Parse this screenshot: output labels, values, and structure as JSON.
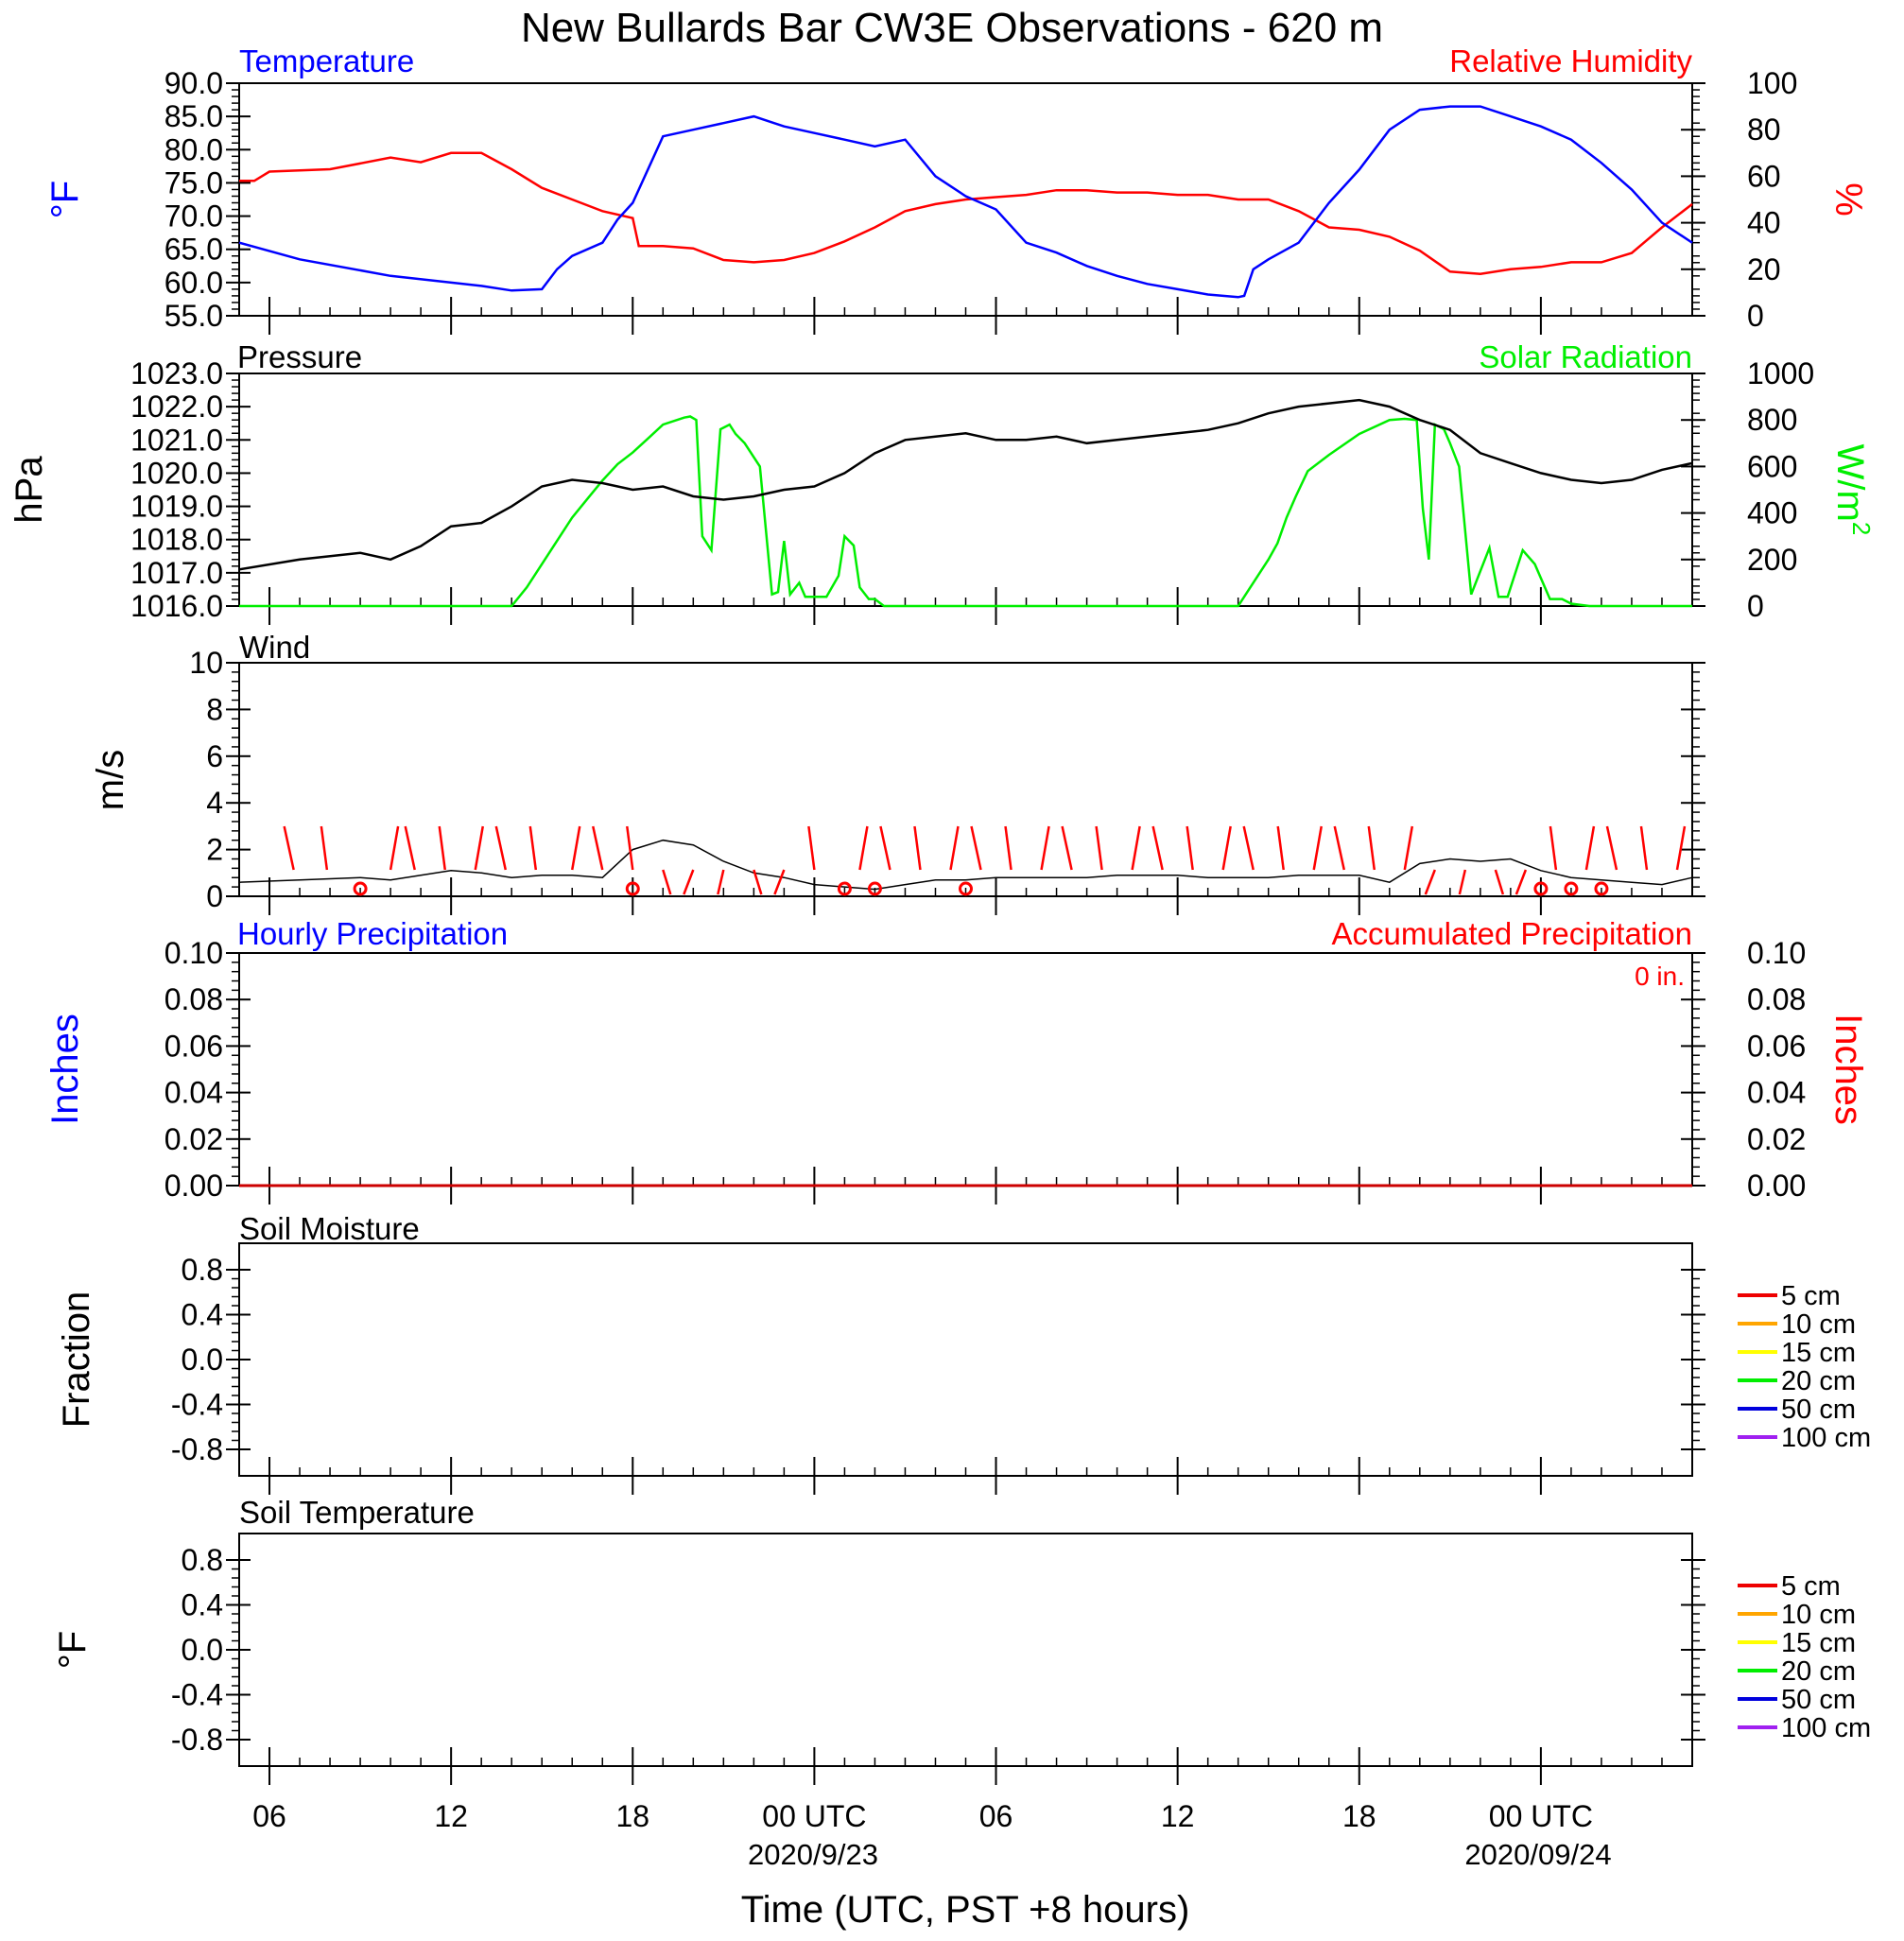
{
  "title": "New Bullards Bar CW3E Observations - 620 m",
  "x_axis": {
    "label": "Time (UTC, PST +8 hours)",
    "tick_labels": [
      "06",
      "12",
      "18",
      "00 UTC",
      "06",
      "12",
      "18",
      "00 UTC"
    ],
    "date_labels": [
      "2020/9/23",
      "2020/09/24"
    ]
  },
  "colors": {
    "temperature": "#0000ff",
    "humidity": "#ff0000",
    "pressure": "#000000",
    "solar": "#00ee00",
    "wind_barb": "#ff0000",
    "precip_hourly": "#0000ff",
    "precip_accum": "#cc0000",
    "soil_levels": [
      "#ee0000",
      "#ffa500",
      "#ffff00",
      "#00ee00",
      "#0000dd",
      "#a020f0"
    ]
  },
  "panels": {
    "temp": {
      "left_title": "Temperature",
      "right_title": "Relative Humidity",
      "left_unit": "°F",
      "right_unit": "%",
      "left_ticks": [
        "90.0",
        "85.0",
        "80.0",
        "75.0",
        "70.0",
        "65.0",
        "60.0",
        "55.0"
      ],
      "right_ticks": [
        "100",
        "80",
        "60",
        "40",
        "20",
        "0"
      ]
    },
    "pressure": {
      "left_title": "Pressure",
      "right_title": "Solar Radiation",
      "left_unit": "hPa",
      "right_unit_base": "W/m",
      "right_unit_sup": "2",
      "left_ticks": [
        "1023.0",
        "1022.0",
        "1021.0",
        "1020.0",
        "1019.0",
        "1018.0",
        "1017.0",
        "1016.0"
      ],
      "right_ticks": [
        "1000",
        "800",
        "600",
        "400",
        "200",
        "0"
      ]
    },
    "wind": {
      "left_title": "Wind",
      "left_unit": "m/s",
      "left_ticks": [
        "10",
        "8",
        "6",
        "4",
        "2",
        "0"
      ]
    },
    "precip": {
      "left_title": "Hourly Precipitation",
      "right_title": "Accumulated Precipitation",
      "left_unit": "Inches",
      "right_unit": "Inches",
      "accum_label": "0 in.",
      "left_ticks": [
        "0.10",
        "0.08",
        "0.06",
        "0.04",
        "0.02",
        "0.00"
      ],
      "right_ticks": [
        "0.10",
        "0.08",
        "0.06",
        "0.04",
        "0.02",
        "0.00"
      ]
    },
    "soil_moisture": {
      "left_title": "Soil Moisture",
      "left_unit": "Fraction",
      "left_ticks": [
        "0.8",
        "0.4",
        "0.0",
        "-0.4",
        "-0.8"
      ],
      "legend": [
        "5 cm",
        "10 cm",
        "15 cm",
        "20 cm",
        "50 cm",
        "100 cm"
      ]
    },
    "soil_temp": {
      "left_title": "Soil Temperature",
      "left_unit": "°F",
      "left_ticks": [
        "0.8",
        "0.4",
        "0.0",
        "-0.4",
        "-0.8"
      ],
      "legend": [
        "5 cm",
        "10 cm",
        "15 cm",
        "20 cm",
        "50 cm",
        "100 cm"
      ]
    }
  },
  "chart_data": [
    {
      "type": "line",
      "title": "Temperature",
      "x_unit": "hours since 2020-09-22 05:00 UTC",
      "ylim": [
        55,
        90
      ],
      "x": [
        0,
        2,
        5,
        8,
        9,
        10,
        10.5,
        11,
        12,
        12.5,
        13,
        14,
        15,
        16,
        17,
        18,
        19,
        20,
        21,
        22,
        23,
        24,
        25,
        26,
        27,
        28,
        29,
        30,
        31,
        32,
        33,
        33.2,
        33.5,
        34,
        35,
        36,
        37,
        38,
        39,
        40,
        41,
        42,
        43,
        44,
        45,
        46,
        47,
        48
      ],
      "series": [
        {
          "name": "Temperature",
          "values": [
            66,
            63.5,
            61,
            59.5,
            58.8,
            59,
            62,
            64,
            66,
            69.5,
            72,
            82,
            83,
            84,
            85,
            83.5,
            82.5,
            81.5,
            80.5,
            81.5,
            76,
            73,
            71,
            66,
            64.5,
            62.5,
            61,
            59.8,
            59,
            58.2,
            57.8,
            58,
            62,
            63.5,
            66,
            72,
            77,
            83,
            86,
            86.5,
            86.5,
            85,
            83.5,
            81.5,
            78,
            74,
            69,
            66
          ]
        }
      ]
    },
    {
      "type": "line",
      "title": "Relative Humidity",
      "x_unit": "hours since 2020-09-22 05:00 UTC",
      "ylim": [
        0,
        100
      ],
      "x": [
        0,
        0.5,
        1,
        3,
        5,
        6,
        7,
        8,
        9,
        10,
        11,
        12,
        13,
        13.2,
        13.4,
        14,
        15,
        16,
        17,
        18,
        19,
        20,
        21,
        22,
        23,
        24,
        25,
        26,
        27,
        28,
        29,
        30,
        31,
        32,
        33,
        34,
        35,
        36,
        37,
        38,
        39,
        40,
        41,
        42,
        43,
        44,
        45,
        46,
        47,
        48
      ],
      "series": [
        {
          "name": "Relative Humidity",
          "values": [
            58,
            58,
            62,
            63,
            68,
            66,
            70,
            70,
            63,
            55,
            50,
            45,
            42,
            30,
            30,
            30,
            29,
            24,
            23,
            24,
            27,
            32,
            38,
            45,
            48,
            50,
            51,
            52,
            54,
            54,
            53,
            53,
            52,
            52,
            50,
            50,
            45,
            38,
            37,
            34,
            28,
            19,
            18,
            20,
            21,
            23,
            23,
            27,
            38,
            48
          ]
        }
      ]
    },
    {
      "type": "line",
      "title": "Pressure",
      "x_unit": "hours since 2020-09-22 05:00 UTC",
      "ylim": [
        1016,
        1023
      ],
      "x": [
        0,
        2,
        4,
        5,
        6,
        7,
        8,
        9,
        10,
        11,
        12,
        13,
        14,
        15,
        16,
        17,
        18,
        19,
        20,
        21,
        22,
        23,
        24,
        25,
        26,
        27,
        28,
        29,
        30,
        31,
        32,
        33,
        34,
        35,
        36,
        37,
        38,
        39,
        40,
        41,
        42,
        43,
        44,
        45,
        46,
        47,
        48
      ],
      "series": [
        {
          "name": "Pressure",
          "values": [
            1017.1,
            1017.4,
            1017.6,
            1017.4,
            1017.8,
            1018.4,
            1018.5,
            1019.0,
            1019.6,
            1019.8,
            1019.7,
            1019.5,
            1019.6,
            1019.3,
            1019.2,
            1019.3,
            1019.5,
            1019.6,
            1020.0,
            1020.6,
            1021.0,
            1021.1,
            1021.2,
            1021.0,
            1021.0,
            1021.1,
            1020.9,
            1021.0,
            1021.1,
            1021.2,
            1021.3,
            1021.5,
            1021.8,
            1022.0,
            1022.1,
            1022.2,
            1022.0,
            1021.6,
            1021.3,
            1020.6,
            1020.3,
            1020.0,
            1019.8,
            1019.7,
            1019.8,
            1020.1,
            1020.3
          ]
        }
      ]
    },
    {
      "type": "line",
      "title": "Solar Radiation",
      "x_unit": "hours since 2020-09-22 05:00 UTC",
      "ylim": [
        0,
        1000
      ],
      "x": [
        0,
        9,
        9.5,
        10,
        10.5,
        11,
        11.5,
        12,
        12.5,
        13,
        13.5,
        14,
        14.7,
        14.9,
        15.1,
        15.3,
        15.6,
        15.9,
        16.2,
        16.4,
        16.7,
        17.2,
        17.6,
        17.8,
        18,
        18.2,
        18.5,
        18.7,
        19,
        19.4,
        19.8,
        20,
        20.3,
        20.5,
        20.8,
        21,
        21.3,
        22,
        33,
        33.4,
        33.7,
        34,
        34.3,
        34.6,
        34.9,
        35.3,
        36,
        37,
        38,
        38.5,
        38.9,
        39.1,
        39.3,
        39.5,
        39.8,
        40,
        40.3,
        40.7,
        41.3,
        41.6,
        41.9,
        42.1,
        42.4,
        42.8,
        43.3,
        43.7,
        44,
        44.3,
        44.6,
        45,
        48
      ],
      "series": [
        {
          "name": "Solar Radiation",
          "values": [
            0,
            0,
            80,
            180,
            280,
            380,
            460,
            540,
            610,
            660,
            720,
            780,
            810,
            815,
            800,
            300,
            240,
            760,
            780,
            740,
            700,
            600,
            50,
            60,
            280,
            50,
            100,
            40,
            40,
            40,
            130,
            300,
            260,
            80,
            30,
            30,
            0,
            0,
            0,
            80,
            140,
            200,
            270,
            380,
            470,
            580,
            650,
            740,
            800,
            805,
            800,
            420,
            200,
            780,
            760,
            700,
            600,
            50,
            250,
            40,
            40,
            120,
            240,
            180,
            30,
            30,
            10,
            5,
            0,
            0,
            0
          ]
        }
      ]
    },
    {
      "type": "line",
      "title": "Wind",
      "x_unit": "hours since 2020-09-22 05:00 UTC",
      "ylim": [
        0,
        10
      ],
      "x": [
        0,
        2,
        4,
        5,
        6,
        7,
        8,
        9,
        10,
        11,
        12,
        13,
        14,
        15,
        16,
        17,
        18,
        19,
        20,
        21,
        22,
        23,
        24,
        25,
        26,
        27,
        28,
        29,
        30,
        31,
        32,
        33,
        34,
        35,
        36,
        37,
        38,
        39,
        40,
        41,
        42,
        43,
        44,
        45,
        46,
        47,
        48
      ],
      "series": [
        {
          "name": "Wind speed",
          "values": [
            0.6,
            0.7,
            0.8,
            0.7,
            0.9,
            1.1,
            1.0,
            0.8,
            0.9,
            0.9,
            0.8,
            2.0,
            2.4,
            2.2,
            1.5,
            1.0,
            0.8,
            0.5,
            0.4,
            0.3,
            0.5,
            0.7,
            0.7,
            0.8,
            0.8,
            0.8,
            0.8,
            0.9,
            0.9,
            0.9,
            0.8,
            0.8,
            0.8,
            0.9,
            0.9,
            0.9,
            0.6,
            1.4,
            1.6,
            1.5,
            1.6,
            1.1,
            0.8,
            0.7,
            0.6,
            0.5,
            0.8
          ]
        }
      ],
      "barb_times": [
        1.8,
        2.9,
        5,
        5.8,
        6.8,
        7.8,
        8.8,
        9.8,
        11,
        12,
        13,
        14,
        15,
        16,
        17,
        18,
        19,
        20.5,
        21.5,
        22.5,
        23.5,
        24.5,
        25.5,
        26.5,
        27.5,
        28.5,
        29.5,
        30.5,
        31.5,
        32.5,
        33.5,
        34.5,
        35.5,
        36.5,
        37.5,
        38.5,
        39.5,
        40.5,
        41.5,
        42.5,
        43.5,
        44.5,
        45.5,
        46.5,
        47.5
      ],
      "calm_times": [
        4,
        13,
        20,
        21,
        24,
        43,
        44,
        45
      ]
    },
    {
      "type": "line",
      "title": "Hourly Precipitation",
      "x_unit": "hours since 2020-09-22 05:00 UTC",
      "ylim": [
        0,
        0.1
      ],
      "x": [
        0,
        48
      ],
      "series": [
        {
          "name": "Hourly Precipitation",
          "values": [
            0,
            0
          ]
        },
        {
          "name": "Accumulated Precipitation",
          "values": [
            0,
            0
          ]
        }
      ]
    }
  ]
}
